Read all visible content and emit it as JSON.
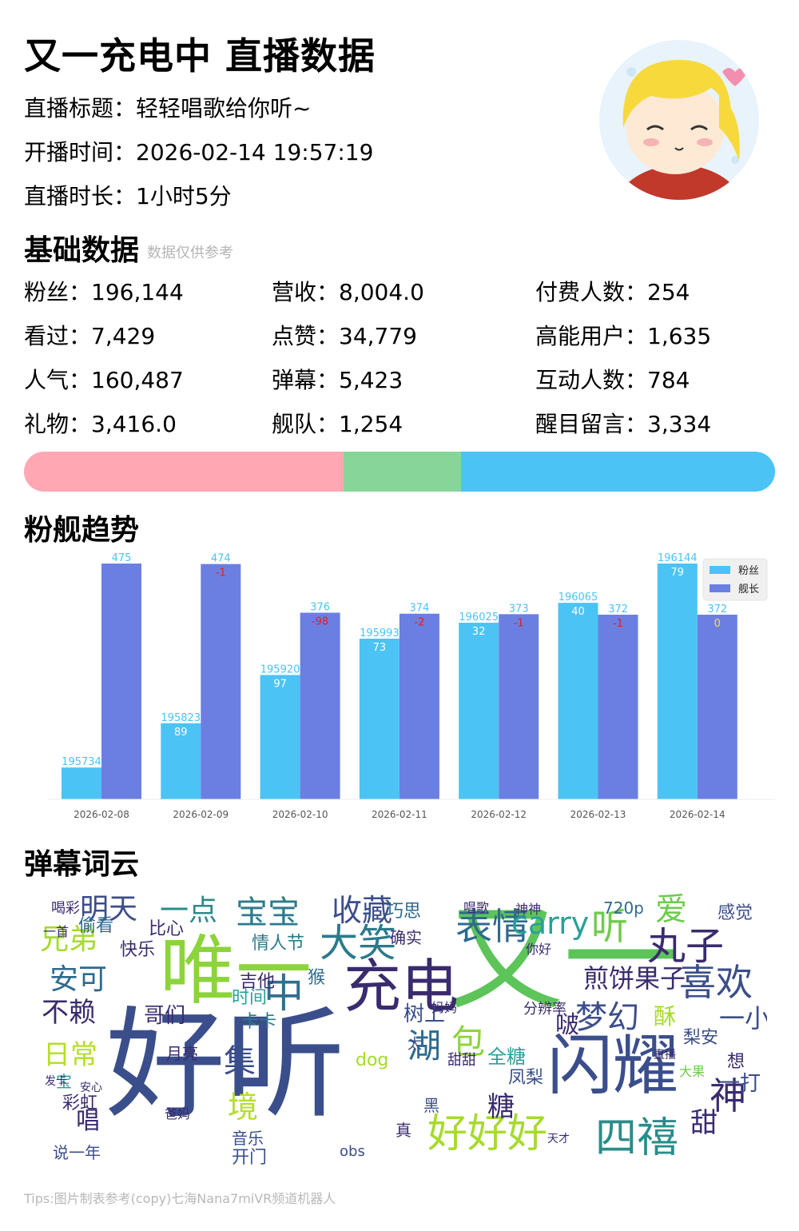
{
  "header": {
    "title": "又一充电中 直播数据",
    "info": [
      {
        "label": "直播标题：",
        "value": "轻轻唱歌给你听~"
      },
      {
        "label": "开播时间：",
        "value": "2026-02-14 19:57:19"
      },
      {
        "label": "直播时长：",
        "value": "1小时5分"
      }
    ]
  },
  "basic": {
    "title": "基础数据",
    "note": "数据仅供参考",
    "stats": [
      {
        "label": "粉丝：",
        "value": "196,144"
      },
      {
        "label": "营收：",
        "value": "8,004.0"
      },
      {
        "label": "付费人数：",
        "value": "254"
      },
      {
        "label": "看过：",
        "value": "7,429"
      },
      {
        "label": "点赞：",
        "value": "34,779"
      },
      {
        "label": "高能用户：",
        "value": "1,635"
      },
      {
        "label": "人气：",
        "value": "160,487"
      },
      {
        "label": "弹幕：",
        "value": "5,423"
      },
      {
        "label": "互动人数：",
        "value": "784"
      },
      {
        "label": "礼物：",
        "value": "3,416.0"
      },
      {
        "label": "舰队：",
        "value": "1,254"
      },
      {
        "label": "醒目留言：",
        "value": "3,334"
      }
    ],
    "ratio_bar": [
      {
        "fraction": 0.426,
        "color": "#FFA8B4"
      },
      {
        "fraction": 0.156,
        "color": "#88D59A"
      },
      {
        "fraction": 0.418,
        "color": "#4BC3F5"
      }
    ]
  },
  "trend": {
    "title": "粉舰趋势"
  },
  "chart_data": {
    "type": "bar",
    "categories": [
      "2026-02-08",
      "2026-02-09",
      "2026-02-10",
      "2026-02-11",
      "2026-02-12",
      "2026-02-13",
      "2026-02-14"
    ],
    "series": [
      {
        "name": "粉丝",
        "color": "#4BC3F5",
        "values": [
          195734,
          195823,
          195920,
          195993,
          196025,
          196065,
          196144
        ],
        "deltas": [
          "",
          "89",
          "97",
          "73",
          "32",
          "40",
          "79"
        ]
      },
      {
        "name": "舰长",
        "color": "#6B7FE3",
        "values": [
          475,
          474,
          376,
          374,
          373,
          372,
          372
        ],
        "deltas": [
          "",
          "-1",
          "-98",
          "-2",
          "-1",
          "-1",
          "0"
        ]
      }
    ],
    "legend": "top-right"
  },
  "wordcloud": {
    "title": "弹幕词云",
    "words": [
      {
        "t": "好听",
        "c": "#3B4E8C"
      },
      {
        "t": "又一",
        "c": "#5DC45A"
      },
      {
        "t": "唯一",
        "c": "#8CD43A"
      },
      {
        "t": "闪耀",
        "c": "#3B4E8C"
      },
      {
        "t": "充电",
        "c": "#3A2B6E"
      },
      {
        "t": "好好好",
        "c": "#A6DB2C"
      },
      {
        "t": "四禧",
        "c": "#2A8C8A"
      },
      {
        "t": "中",
        "c": "#2F6E8E"
      },
      {
        "t": "大笑",
        "c": "#2C7A8C"
      },
      {
        "t": "表情",
        "c": "#2E6A8E"
      },
      {
        "t": "喜欢",
        "c": "#3B4E8C"
      },
      {
        "t": "丸子",
        "c": "#3A2B6E"
      },
      {
        "t": "煎饼果子",
        "c": "#3A2B6E"
      },
      {
        "t": "梦幻",
        "c": "#3D4E8A"
      },
      {
        "t": "宝宝",
        "c": "#2C7A8C"
      },
      {
        "t": "carry",
        "c": "#2AA09A"
      },
      {
        "t": "听",
        "c": "#6FCB4C"
      },
      {
        "t": "收藏",
        "c": "#3B4E8C"
      },
      {
        "t": "明天",
        "c": "#3B4E8C"
      },
      {
        "t": "兄弟",
        "c": "#A6DB2C"
      },
      {
        "t": "安可",
        "c": "#2E6A8E"
      },
      {
        "t": "不赖",
        "c": "#3A2B6E"
      },
      {
        "t": "神",
        "c": "#3A2B6E"
      },
      {
        "t": "爱",
        "c": "#6FCB4C"
      },
      {
        "t": "一点",
        "c": "#2A8C8A"
      },
      {
        "t": "包",
        "c": "#8CD43A"
      },
      {
        "t": "湖",
        "c": "#2E6A8E"
      },
      {
        "t": "集",
        "c": "#3B4E8C"
      },
      {
        "t": "境",
        "c": "#B5DE2B"
      },
      {
        "t": "甜",
        "c": "#3A2B6E"
      },
      {
        "t": "一小",
        "c": "#3B4E8C"
      },
      {
        "t": "一打",
        "c": "#3B4E8C"
      },
      {
        "t": "日常",
        "c": "#B5DE2B"
      },
      {
        "t": "哥们",
        "c": "#3A2B6E"
      },
      {
        "t": "情人节",
        "c": "#2C7A8C"
      },
      {
        "t": "树上",
        "c": "#3B4E8C"
      },
      {
        "t": "全糖",
        "c": "#2AA09A"
      },
      {
        "t": "唱",
        "c": "#3A2B6E"
      },
      {
        "t": "糖",
        "c": "#3A2B6E"
      },
      {
        "t": "感觉",
        "c": "#3D4E8A"
      },
      {
        "t": "快乐",
        "c": "#3A2B6E"
      },
      {
        "t": "偷看",
        "c": "#2E6A8E"
      },
      {
        "t": "比心",
        "c": "#3A2B6E"
      },
      {
        "t": "时间",
        "c": "#2AA09A"
      },
      {
        "t": "卡卡",
        "c": "#2C7A8C"
      },
      {
        "t": "巧思",
        "c": "#2E6A8E"
      },
      {
        "t": "确实",
        "c": "#3A2B6E"
      },
      {
        "t": "酥",
        "c": "#A6DB2C"
      },
      {
        "t": "啵",
        "c": "#3A2B6E"
      },
      {
        "t": "梨安",
        "c": "#3B4E8C"
      },
      {
        "t": "凤梨",
        "c": "#3B4E8C"
      },
      {
        "t": "开门",
        "c": "#3B4E8C"
      },
      {
        "t": "吉他",
        "c": "#3A2B6E"
      },
      {
        "t": "猴",
        "c": "#2E6A8E"
      },
      {
        "t": "月亮",
        "c": "#3A2B6E"
      },
      {
        "t": "dog",
        "c": "#A6DB2C"
      },
      {
        "t": "黑",
        "c": "#3B4E8C"
      },
      {
        "t": "真",
        "c": "#3A2B6E"
      },
      {
        "t": "想",
        "c": "#3A2B6E"
      },
      {
        "t": "大果",
        "c": "#6FCB4C"
      },
      {
        "t": "彩虹",
        "c": "#3A2B6E"
      },
      {
        "t": "宝",
        "c": "#2AA09A"
      },
      {
        "t": "音乐",
        "c": "#3B4E8C"
      },
      {
        "t": "喝彩",
        "c": "#3A2B6E"
      },
      {
        "t": "一首",
        "c": "#3A2B6E"
      },
      {
        "t": "720p",
        "c": "#2E6A8E"
      },
      {
        "t": "obs",
        "c": "#3B4E8C"
      },
      {
        "t": "说一年",
        "c": "#3B4E8C"
      },
      {
        "t": "甜甜",
        "c": "#3A2B6E"
      },
      {
        "t": "太",
        "c": "#3B4E8C"
      },
      {
        "t": "分辨率",
        "c": "#3A2B6E"
      },
      {
        "t": "妈妈",
        "c": "#3A2B6E"
      },
      {
        "t": "天才",
        "c": "#3A2B6E"
      },
      {
        "t": "爸妈",
        "c": "#3A2B6E"
      },
      {
        "t": "直播",
        "c": "#3A2B6E"
      },
      {
        "t": "神神",
        "c": "#3A2B6E"
      },
      {
        "t": "唱歌",
        "c": "#3A2B6E"
      },
      {
        "t": "你好",
        "c": "#3A2B6E"
      },
      {
        "t": "安心",
        "c": "#3A2B6E"
      },
      {
        "t": "发卡",
        "c": "#3A2B6E"
      }
    ]
  },
  "footer": {
    "tips": "Tips:图片制表参考(copy)七海Nana7miVR频道机器人"
  }
}
